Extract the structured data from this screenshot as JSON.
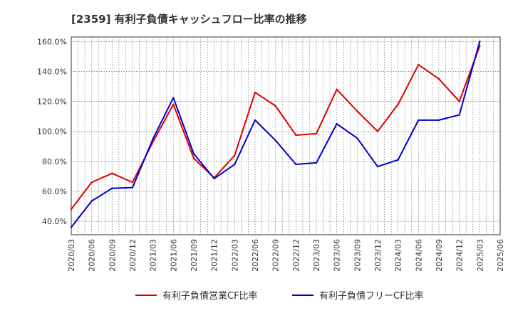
{
  "chart_data": {
    "type": "line",
    "title": "[2359]  有利子負債キャッシュフロー比率の推移",
    "xlabel": "",
    "ylabel": "",
    "ylim": [
      31,
      163
    ],
    "yticks": [
      40,
      60,
      80,
      100,
      120,
      140,
      160
    ],
    "ytick_labels": [
      "40.0%",
      "60.0%",
      "80.0%",
      "100.0%",
      "120.0%",
      "140.0%",
      "160.0%"
    ],
    "xlim": [
      "2020/03",
      "2025/06"
    ],
    "xtick_labels": [
      "2020/03",
      "2020/06",
      "2020/09",
      "2020/12",
      "2021/03",
      "2021/06",
      "2021/09",
      "2021/12",
      "2022/03",
      "2022/06",
      "2022/09",
      "2022/12",
      "2023/03",
      "2023/06",
      "2023/09",
      "2023/12",
      "2024/03",
      "2024/06",
      "2024/09",
      "2024/12",
      "2025/03",
      "2025/06"
    ],
    "grid": true,
    "legend_position": "bottom",
    "series": [
      {
        "name": "有利子負債営業CF比率",
        "color": "#dd0000",
        "x": [
          "2020/03",
          "2020/06",
          "2020/09",
          "2020/12",
          "2021/03",
          "2021/06",
          "2021/09",
          "2021/12",
          "2022/03",
          "2022/06",
          "2022/09",
          "2022/12",
          "2023/03",
          "2023/06",
          "2023/09",
          "2023/12",
          "2024/03",
          "2024/06",
          "2024/09",
          "2024/12",
          "2025/03"
        ],
        "values": [
          48,
          66,
          72,
          66,
          93,
          118,
          82,
          69,
          84,
          126,
          117,
          97.5,
          98.5,
          128,
          113.5,
          100,
          118,
          144.5,
          135,
          120,
          157
        ]
      },
      {
        "name": "有利子負債フリーCF比率",
        "color": "#0000cc",
        "x": [
          "2020/03",
          "2020/06",
          "2020/09",
          "2020/12",
          "2021/03",
          "2021/06",
          "2021/09",
          "2021/12",
          "2022/03",
          "2022/06",
          "2022/09",
          "2022/12",
          "2023/03",
          "2023/06",
          "2023/09",
          "2023/12",
          "2024/03",
          "2024/06",
          "2024/09",
          "2024/12",
          "2025/03"
        ],
        "values": [
          36,
          53.5,
          62,
          62.5,
          95,
          122.5,
          85,
          68.5,
          78,
          107.5,
          94,
          78,
          79,
          105,
          95.5,
          76.5,
          81,
          107.5,
          107.5,
          111,
          160
        ]
      }
    ]
  }
}
